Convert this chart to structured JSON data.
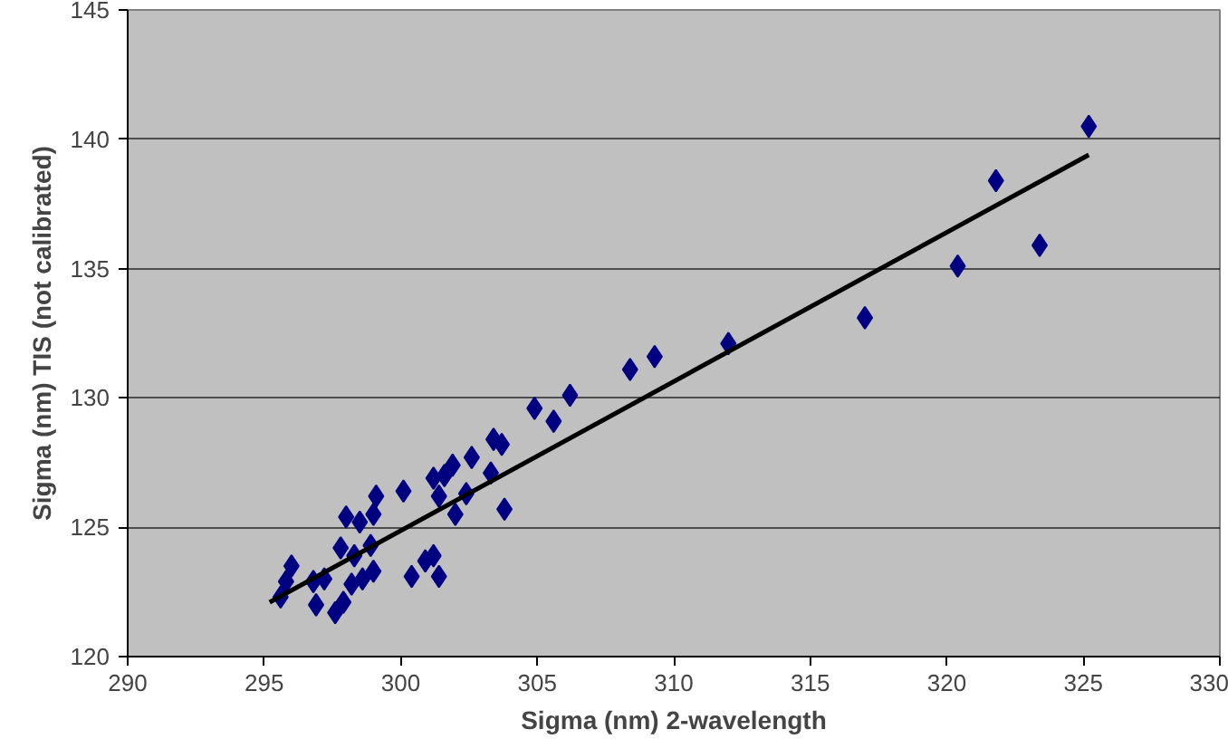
{
  "chart_data": {
    "type": "scatter",
    "xlabel": "Sigma (nm) 2-wavelength",
    "ylabel": "Sigma (nm) TIS (not calibrated)",
    "xlim": [
      290,
      330
    ],
    "ylim": [
      120,
      145
    ],
    "xticks": [
      290,
      295,
      300,
      305,
      310,
      315,
      320,
      325,
      330
    ],
    "yticks": [
      120,
      125,
      130,
      135,
      140,
      145
    ],
    "grid": "y",
    "series": [
      {
        "marker": "diamond",
        "color": "#000080",
        "x": [
          325.2,
          321.8,
          323.4,
          320.4,
          317.0,
          312.0,
          309.3,
          308.4,
          306.2,
          305.6,
          304.9,
          303.7,
          303.4,
          303.3,
          302.6,
          301.9,
          301.6,
          301.2,
          301.4,
          302.4,
          302.0,
          303.8,
          300.1,
          299.1,
          299.0,
          298.5,
          298.0,
          298.9,
          297.8,
          298.3,
          298.6,
          299.0,
          298.2,
          297.9,
          297.6,
          297.2,
          296.8,
          296.9,
          296.0,
          295.8,
          295.6,
          300.4,
          300.9,
          301.2,
          301.4
        ],
        "values": [
          140.5,
          138.4,
          135.9,
          135.1,
          133.1,
          132.1,
          131.6,
          131.1,
          130.1,
          129.1,
          129.6,
          128.2,
          128.4,
          127.1,
          127.7,
          127.4,
          127.0,
          126.9,
          126.2,
          126.3,
          125.5,
          125.7,
          126.4,
          126.2,
          125.5,
          125.2,
          125.4,
          124.3,
          124.2,
          123.9,
          123.0,
          123.3,
          122.8,
          122.1,
          121.7,
          123.0,
          122.9,
          122.0,
          123.5,
          122.9,
          122.3,
          123.1,
          123.7,
          123.9,
          123.1
        ]
      },
      {
        "type": "line",
        "marker": "none",
        "color": "#000000",
        "x": [
          295.2,
          325.2
        ],
        "values": [
          122.1,
          139.4
        ]
      }
    ]
  }
}
